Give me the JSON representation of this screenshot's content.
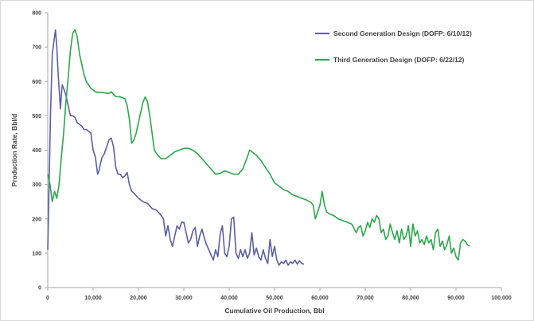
{
  "chart_data": {
    "type": "line",
    "title": "",
    "xlabel": "Cumulative Oil Production, Bbl",
    "ylabel": "Production Rate, Bbl/d",
    "xlim": [
      0,
      100000
    ],
    "ylim": [
      0,
      800
    ],
    "x_ticks": [
      0,
      10000,
      20000,
      30000,
      40000,
      50000,
      60000,
      70000,
      80000,
      90000,
      100000
    ],
    "x_tick_labels": [
      "0",
      "10,000",
      "20,000",
      "30,000",
      "40,000",
      "50,000",
      "60,000",
      "70,000",
      "80,000",
      "90,000",
      "100,000"
    ],
    "y_ticks": [
      0,
      100,
      200,
      300,
      400,
      500,
      600,
      700,
      800
    ],
    "y_tick_labels": [
      "0",
      "100",
      "200",
      "300",
      "400",
      "500",
      "600",
      "700",
      "800"
    ],
    "grid": false,
    "legend_position": "top-right",
    "series": [
      {
        "name": "Second Generation Design (DOFP: 6/10/12)",
        "color": "#5b5ea6",
        "points": [
          [
            0,
            110
          ],
          [
            300,
            300
          ],
          [
            600,
            500
          ],
          [
            1000,
            680
          ],
          [
            1400,
            720
          ],
          [
            1700,
            750
          ],
          [
            2000,
            700
          ],
          [
            2300,
            620
          ],
          [
            2600,
            560
          ],
          [
            2800,
            520
          ],
          [
            3000,
            560
          ],
          [
            3200,
            590
          ],
          [
            3500,
            580
          ],
          [
            4000,
            560
          ],
          [
            4500,
            530
          ],
          [
            5000,
            500
          ],
          [
            5500,
            500
          ],
          [
            6000,
            495
          ],
          [
            6500,
            480
          ],
          [
            7000,
            475
          ],
          [
            7500,
            470
          ],
          [
            8000,
            460
          ],
          [
            8500,
            460
          ],
          [
            9000,
            455
          ],
          [
            9500,
            450
          ],
          [
            10000,
            400
          ],
          [
            10500,
            380
          ],
          [
            11000,
            330
          ],
          [
            11300,
            340
          ],
          [
            11600,
            360
          ],
          [
            12000,
            380
          ],
          [
            12500,
            390
          ],
          [
            13000,
            410
          ],
          [
            13500,
            430
          ],
          [
            14000,
            435
          ],
          [
            14500,
            410
          ],
          [
            15000,
            350
          ],
          [
            15500,
            330
          ],
          [
            16000,
            330
          ],
          [
            16500,
            320
          ],
          [
            17000,
            325
          ],
          [
            17500,
            335
          ],
          [
            18000,
            300
          ],
          [
            18500,
            280
          ],
          [
            19000,
            275
          ],
          [
            20000,
            260
          ],
          [
            21000,
            250
          ],
          [
            22000,
            245
          ],
          [
            23000,
            230
          ],
          [
            24000,
            225
          ],
          [
            25000,
            210
          ],
          [
            25500,
            200
          ],
          [
            26000,
            150
          ],
          [
            26500,
            180
          ],
          [
            27000,
            140
          ],
          [
            27500,
            120
          ],
          [
            28000,
            150
          ],
          [
            28500,
            180
          ],
          [
            29000,
            170
          ],
          [
            29500,
            190
          ],
          [
            30000,
            190
          ],
          [
            30500,
            160
          ],
          [
            31000,
            130
          ],
          [
            31500,
            140
          ],
          [
            32000,
            165
          ],
          [
            32500,
            175
          ],
          [
            33000,
            120
          ],
          [
            33500,
            150
          ],
          [
            34000,
            170
          ],
          [
            34500,
            145
          ],
          [
            35000,
            125
          ],
          [
            35500,
            110
          ],
          [
            36000,
            95
          ],
          [
            36500,
            80
          ],
          [
            37000,
            110
          ],
          [
            37500,
            90
          ],
          [
            38000,
            155
          ],
          [
            38500,
            180
          ],
          [
            39000,
            100
          ],
          [
            39500,
            90
          ],
          [
            40000,
            120
          ],
          [
            40500,
            200
          ],
          [
            41000,
            205
          ],
          [
            41500,
            100
          ],
          [
            42000,
            85
          ],
          [
            42500,
            110
          ],
          [
            43000,
            90
          ],
          [
            43500,
            110
          ],
          [
            44000,
            85
          ],
          [
            44500,
            100
          ],
          [
            45000,
            160
          ],
          [
            45500,
            95
          ],
          [
            46000,
            115
          ],
          [
            46500,
            90
          ],
          [
            47000,
            80
          ],
          [
            47500,
            110
          ],
          [
            48000,
            85
          ],
          [
            48500,
            70
          ],
          [
            49000,
            140
          ],
          [
            49500,
            90
          ],
          [
            50000,
            120
          ],
          [
            50500,
            80
          ],
          [
            51000,
            65
          ],
          [
            51500,
            75
          ],
          [
            52000,
            70
          ],
          [
            52500,
            80
          ],
          [
            53000,
            65
          ],
          [
            53500,
            75
          ],
          [
            54000,
            70
          ],
          [
            54500,
            80
          ],
          [
            55000,
            68
          ],
          [
            55500,
            78
          ],
          [
            56000,
            70
          ],
          [
            56500,
            68
          ]
        ]
      },
      {
        "name": "Third Generation Design (DOFP: 6/22/12)",
        "color": "#2aa84a",
        "points": [
          [
            0,
            330
          ],
          [
            500,
            300
          ],
          [
            1000,
            250
          ],
          [
            1500,
            280
          ],
          [
            2000,
            260
          ],
          [
            2500,
            300
          ],
          [
            3000,
            380
          ],
          [
            3500,
            450
          ],
          [
            4000,
            540
          ],
          [
            4500,
            610
          ],
          [
            5000,
            690
          ],
          [
            5500,
            740
          ],
          [
            6000,
            750
          ],
          [
            6500,
            730
          ],
          [
            7000,
            680
          ],
          [
            7500,
            650
          ],
          [
            8000,
            620
          ],
          [
            8500,
            600
          ],
          [
            9000,
            590
          ],
          [
            9500,
            580
          ],
          [
            10000,
            575
          ],
          [
            10500,
            570
          ],
          [
            11000,
            568
          ],
          [
            12000,
            568
          ],
          [
            13000,
            566
          ],
          [
            13500,
            565
          ],
          [
            14000,
            570
          ],
          [
            14500,
            562
          ],
          [
            15000,
            556
          ],
          [
            16000,
            555
          ],
          [
            17000,
            550
          ],
          [
            17500,
            530
          ],
          [
            18000,
            490
          ],
          [
            18500,
            420
          ],
          [
            19000,
            430
          ],
          [
            19500,
            450
          ],
          [
            20000,
            480
          ],
          [
            20500,
            510
          ],
          [
            21000,
            540
          ],
          [
            21500,
            555
          ],
          [
            22000,
            540
          ],
          [
            22500,
            500
          ],
          [
            23000,
            450
          ],
          [
            23500,
            400
          ],
          [
            24000,
            390
          ],
          [
            25000,
            375
          ],
          [
            26000,
            375
          ],
          [
            27000,
            385
          ],
          [
            28000,
            395
          ],
          [
            29000,
            400
          ],
          [
            30000,
            405
          ],
          [
            31000,
            405
          ],
          [
            32000,
            400
          ],
          [
            33000,
            390
          ],
          [
            34000,
            375
          ],
          [
            35000,
            360
          ],
          [
            36000,
            345
          ],
          [
            37000,
            330
          ],
          [
            38000,
            332
          ],
          [
            39000,
            340
          ],
          [
            40000,
            335
          ],
          [
            41000,
            330
          ],
          [
            42000,
            330
          ],
          [
            43000,
            345
          ],
          [
            44000,
            380
          ],
          [
            44500,
            400
          ],
          [
            45000,
            395
          ],
          [
            46000,
            385
          ],
          [
            47000,
            370
          ],
          [
            48000,
            350
          ],
          [
            49000,
            330
          ],
          [
            50000,
            305
          ],
          [
            51000,
            295
          ],
          [
            52000,
            285
          ],
          [
            53000,
            280
          ],
          [
            54000,
            270
          ],
          [
            55000,
            265
          ],
          [
            56000,
            260
          ],
          [
            57000,
            255
          ],
          [
            58000,
            248
          ],
          [
            58500,
            240
          ],
          [
            59000,
            200
          ],
          [
            59500,
            220
          ],
          [
            60000,
            240
          ],
          [
            60500,
            280
          ],
          [
            61000,
            240
          ],
          [
            61500,
            220
          ],
          [
            62000,
            215
          ],
          [
            63000,
            210
          ],
          [
            64000,
            200
          ],
          [
            65000,
            195
          ],
          [
            66000,
            190
          ],
          [
            67000,
            185
          ],
          [
            68000,
            160
          ],
          [
            68500,
            175
          ],
          [
            69000,
            180
          ],
          [
            69500,
            150
          ],
          [
            70000,
            165
          ],
          [
            70500,
            190
          ],
          [
            71000,
            175
          ],
          [
            71500,
            200
          ],
          [
            72000,
            190
          ],
          [
            72500,
            210
          ],
          [
            73000,
            200
          ],
          [
            73500,
            160
          ],
          [
            74000,
            170
          ],
          [
            74500,
            140
          ],
          [
            75000,
            150
          ],
          [
            75500,
            185
          ],
          [
            76000,
            160
          ],
          [
            76500,
            140
          ],
          [
            77000,
            165
          ],
          [
            77500,
            130
          ],
          [
            78000,
            170
          ],
          [
            78500,
            140
          ],
          [
            79000,
            150
          ],
          [
            79500,
            180
          ],
          [
            80000,
            120
          ],
          [
            80500,
            185
          ],
          [
            81000,
            150
          ],
          [
            81500,
            165
          ],
          [
            82000,
            130
          ],
          [
            82500,
            140
          ],
          [
            83000,
            125
          ],
          [
            83500,
            150
          ],
          [
            84000,
            130
          ],
          [
            84500,
            140
          ],
          [
            85000,
            110
          ],
          [
            85500,
            160
          ],
          [
            86000,
            170
          ],
          [
            86500,
            120
          ],
          [
            87000,
            135
          ],
          [
            87500,
            110
          ],
          [
            88000,
            125
          ],
          [
            88500,
            150
          ],
          [
            89000,
            100
          ],
          [
            89500,
            115
          ],
          [
            90000,
            90
          ],
          [
            90500,
            80
          ],
          [
            91000,
            130
          ],
          [
            91500,
            140
          ],
          [
            92000,
            135
          ],
          [
            92500,
            125
          ],
          [
            93000,
            120
          ]
        ]
      }
    ]
  }
}
